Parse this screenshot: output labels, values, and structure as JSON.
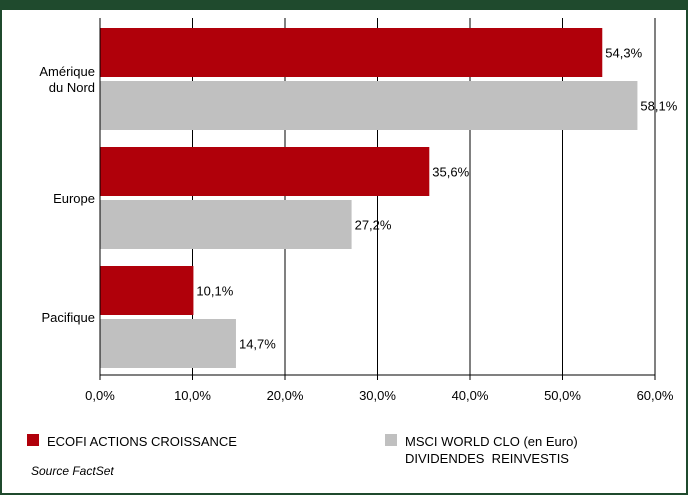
{
  "chart_data": {
    "type": "bar",
    "orientation": "horizontal",
    "categories": [
      [
        "Amérique",
        "du Nord"
      ],
      [
        "Europe"
      ],
      [
        "Pacifique"
      ]
    ],
    "series": [
      {
        "name": "ECOFI ACTIONS CROISSANCE",
        "values": [
          54.3,
          35.6,
          10.1
        ],
        "labels": [
          "54,3%",
          "35,6%",
          "10,1%"
        ],
        "color": "#b0000a"
      },
      {
        "name": "MSCI WORLD CLO (en Euro) DIVIDENDES REINVESTIS",
        "values": [
          58.1,
          27.2,
          14.7
        ],
        "labels": [
          "58,1%",
          "27,2%",
          "14,7%"
        ],
        "color": "#c0c0c0"
      }
    ],
    "xlim": [
      0,
      60
    ],
    "x_ticks": [
      0,
      10,
      20,
      30,
      40,
      50,
      60
    ],
    "x_tick_labels": [
      "0,0%",
      "10,0%",
      "20,0%",
      "30,0%",
      "40,0%",
      "50,0%",
      "60,0%"
    ],
    "grid": true,
    "legend_position": "bottom"
  },
  "legend": {
    "items": [
      {
        "lines": [
          "ECOFI ACTIONS CROISSANCE"
        ],
        "color": "#b0000a"
      },
      {
        "lines": [
          "MSCI WORLD CLO (en Euro)",
          "DIVIDENDES  REINVESTIS"
        ],
        "color": "#c0c0c0"
      }
    ]
  },
  "source": "Source FactSet"
}
